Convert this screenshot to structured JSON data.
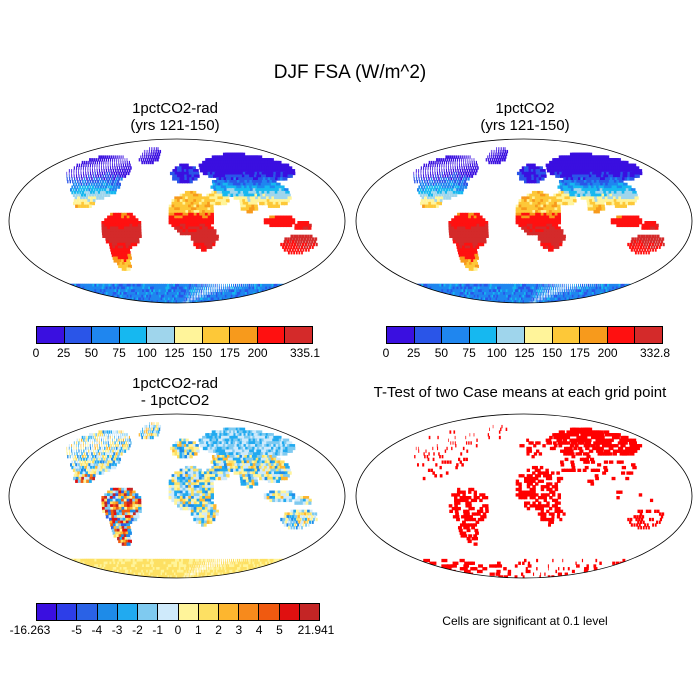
{
  "title": "DJF FSA (W/m^2)",
  "panels": [
    {
      "title": "1pctCO2-rad\n(yrs 121-150)",
      "kind": "absolute"
    },
    {
      "title": "1pctCO2\n(yrs 121-150)",
      "kind": "absolute"
    },
    {
      "title": "1pctCO2-rad\n- 1pctCO2",
      "kind": "difference"
    },
    {
      "title": "T-Test of two Case means at each grid point",
      "kind": "significance"
    }
  ],
  "colorbars": {
    "abs_left": {
      "colors": [
        "#3a0fe0",
        "#2a55e8",
        "#1f86ef",
        "#16b8f0",
        "#9fd5ec",
        "#fff49a",
        "#fdc838",
        "#f79a1c",
        "#ff1010",
        "#d42a2a"
      ],
      "labels": [
        "0",
        "25",
        "50",
        "75",
        "100",
        "125",
        "150",
        "175",
        "200",
        "335.1"
      ]
    },
    "abs_right": {
      "colors": [
        "#3a0fe0",
        "#2a55e8",
        "#1f86ef",
        "#16b8f0",
        "#9fd5ec",
        "#fff49a",
        "#fdc838",
        "#f79a1c",
        "#ff1010",
        "#d42a2a"
      ],
      "labels": [
        "0",
        "25",
        "50",
        "75",
        "100",
        "125",
        "150",
        "175",
        "200",
        "332.8"
      ]
    },
    "diff": {
      "colors": [
        "#3a0fe0",
        "#2d3ee8",
        "#2a62e6",
        "#1e8be8",
        "#21aaf0",
        "#7fcaf0",
        "#cfeafb",
        "#fff49a",
        "#fde063",
        "#fdb62f",
        "#f78a1c",
        "#f05a10",
        "#e01010",
        "#c42525"
      ],
      "labels": [
        "-16.263",
        "-5",
        "-4",
        "-3",
        "-2",
        "-1",
        "0",
        "1",
        "2",
        "3",
        "4",
        "5",
        "21.941"
      ]
    }
  },
  "note": "Cells are significant at 0.1 level"
}
